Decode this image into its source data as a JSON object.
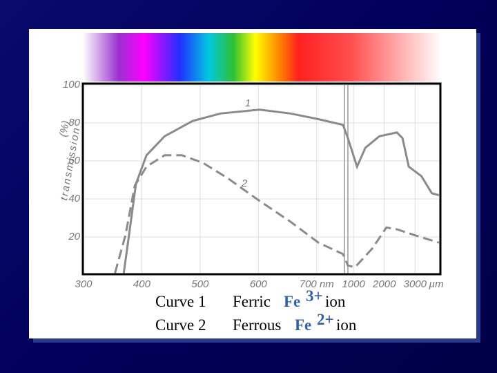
{
  "chart_data": {
    "type": "line",
    "ylabel": "transmission",
    "yunit": "(%)",
    "x_unit": "µm",
    "x": null,
    "series": [
      {
        "name": "1",
        "color": "#8a8a8a",
        "dash": false,
        "x": [
          369,
          378,
          390,
          408,
          439,
          487,
          535,
          602,
          655,
          703,
          745,
          818,
          1114,
          1386,
          1841,
          2409,
          2591,
          2795,
          3205,
          3545,
          3773
        ],
        "values": [
          1,
          21,
          48,
          63,
          73,
          81,
          85,
          87,
          85,
          82,
          79,
          72,
          57,
          67,
          73,
          75,
          72,
          57,
          52,
          43,
          42
        ]
      },
      {
        "name": "2",
        "color": "#8a8a8a",
        "dash": true,
        "x": [
          354,
          372,
          388,
          408,
          439,
          469,
          505,
          547,
          602,
          655,
          703,
          745,
          818,
          1045,
          1614,
          2068,
          2409,
          2977,
          3773
        ],
        "values": [
          1,
          21,
          47,
          57,
          63,
          63,
          59,
          51,
          39,
          28,
          17,
          11,
          5,
          4,
          14,
          25,
          24,
          21,
          17
        ]
      }
    ],
    "xlim": [
      300,
      3800
    ],
    "x_break": 750,
    "xticks": [
      300,
      400,
      500,
      600,
      {
        "value": 700,
        "label": "700 nm"
      },
      1000,
      2000,
      3000
    ],
    "ylim": [
      0,
      100
    ],
    "yticks": [
      20,
      40,
      60,
      80,
      100
    ],
    "grid": true
  },
  "captions": [
    {
      "curve": "Curve 1",
      "name": "Ferric",
      "ion": "Fe",
      "charge": "3+",
      "suffix": "ion"
    },
    {
      "curve": "Curve 2",
      "name": "Ferrous",
      "ion": "Fe",
      "charge": "2+",
      "suffix": "ion"
    }
  ]
}
